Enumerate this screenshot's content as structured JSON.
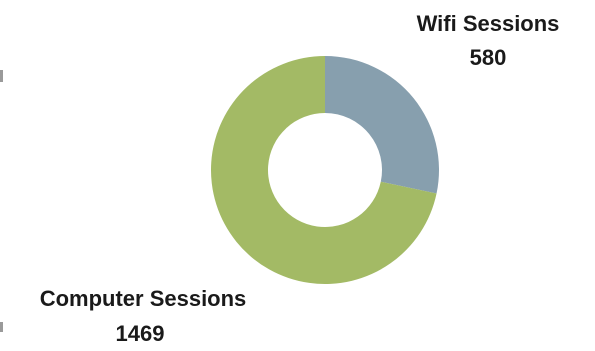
{
  "chart_data": {
    "type": "pie",
    "donut": true,
    "slices": [
      {
        "label": "Wifi Sessions",
        "value": 580,
        "color": "#879fae"
      },
      {
        "label": "Computer Sessions",
        "value": 1469,
        "color": "#a3ba65"
      }
    ],
    "legend": "none"
  }
}
